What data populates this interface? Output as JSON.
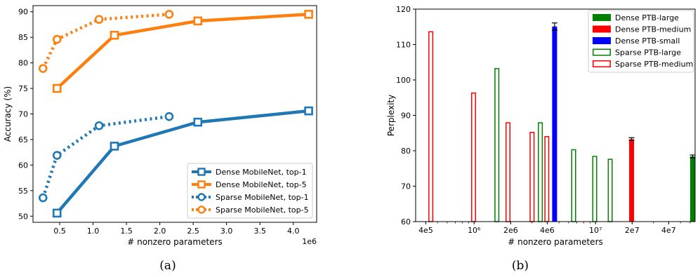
{
  "chart_data": [
    {
      "type": "line",
      "caption": "(a)",
      "xlabel": "# nonzero parameters",
      "ylabel": "Accuracy (%)",
      "x_offset_label": "1e6",
      "xlim": [
        0.1,
        4.35
      ],
      "ylim": [
        48.8,
        91.2
      ],
      "xticks": [
        0.5,
        1.0,
        1.5,
        2.0,
        2.5,
        3.0,
        3.5,
        4.0
      ],
      "xtick_labels": [
        "0.5",
        "1.0",
        "1.5",
        "2.0",
        "2.5",
        "3.0",
        "3.5",
        "4.0"
      ],
      "yticks": [
        50,
        55,
        60,
        65,
        70,
        75,
        80,
        85,
        90
      ],
      "ytick_labels": [
        "50",
        "55",
        "60",
        "65",
        "70",
        "75",
        "80",
        "85",
        "90"
      ],
      "grid": false,
      "legend_position": "lower-right",
      "series": [
        {
          "name": "Dense MobileNet, top-1",
          "style": "solid",
          "marker": "square",
          "color": "#1f77b4",
          "x": [
            0.46,
            1.32,
            2.57,
            4.23
          ],
          "y": [
            50.6,
            63.7,
            68.4,
            70.6
          ]
        },
        {
          "name": "Dense MobileNet, top-5",
          "style": "solid",
          "marker": "square",
          "color": "#ff7f0e",
          "x": [
            0.46,
            1.32,
            2.57,
            4.23
          ],
          "y": [
            75.0,
            85.4,
            88.2,
            89.5
          ]
        },
        {
          "name": "Sparse MobileNet, top-1",
          "style": "dotted",
          "marker": "circle",
          "color": "#1f77b4",
          "x": [
            0.25,
            0.46,
            1.09,
            2.14
          ],
          "y": [
            53.6,
            61.9,
            67.7,
            69.5
          ]
        },
        {
          "name": "Sparse MobileNet, top-5",
          "style": "dotted",
          "marker": "circle",
          "color": "#ff7f0e",
          "x": [
            0.25,
            0.46,
            1.09,
            2.14
          ],
          "y": [
            78.9,
            84.6,
            88.5,
            89.5
          ]
        }
      ]
    },
    {
      "type": "bar",
      "caption": "(b)",
      "xlabel": "# nonzero parameters",
      "ylabel": "Perplexity",
      "xscale": "log",
      "xlim": [
        330000,
        66000000
      ],
      "ylim": [
        60,
        120
      ],
      "xticks": [
        400000,
        1000000,
        2000000,
        4000000,
        10000000,
        20000000,
        40000000
      ],
      "xtick_labels": [
        "4e5",
        "10⁶",
        "2e6",
        "4e6",
        "10⁷",
        "2e7",
        "4e7"
      ],
      "yticks": [
        60,
        70,
        80,
        90,
        100,
        110,
        120
      ],
      "ytick_labels": [
        "60",
        "70",
        "80",
        "90",
        "100",
        "110",
        "120"
      ],
      "grid": false,
      "legend_position": "top-right",
      "series": [
        {
          "name": "Dense PTB-large",
          "fill": "solid",
          "color": "#008000",
          "points": [
            {
              "x": 66000000,
              "y": 78.4,
              "err": 0.4
            }
          ]
        },
        {
          "name": "Dense PTB-medium",
          "fill": "solid",
          "color": "#ff0000",
          "points": [
            {
              "x": 19800000,
              "y": 83.3,
              "err": 0.4
            }
          ]
        },
        {
          "name": "Dense PTB-small",
          "fill": "solid",
          "color": "#0000ff",
          "points": [
            {
              "x": 4600000,
              "y": 115.1,
              "err": 1.0
            }
          ]
        },
        {
          "name": "Sparse PTB-large",
          "fill": "outline",
          "color": "#008000",
          "points": [
            {
              "x": 1540000,
              "y": 103.2
            },
            {
              "x": 3510000,
              "y": 87.9
            },
            {
              "x": 6600000,
              "y": 80.3
            },
            {
              "x": 9840000,
              "y": 78.4
            },
            {
              "x": 13200000,
              "y": 77.6
            }
          ]
        },
        {
          "name": "Sparse PTB-medium",
          "fill": "outline",
          "color": "#ff0000",
          "points": [
            {
              "x": 440000,
              "y": 113.6
            },
            {
              "x": 990000,
              "y": 96.3
            },
            {
              "x": 1900000,
              "y": 87.9
            },
            {
              "x": 3000000,
              "y": 85.2
            },
            {
              "x": 3970000,
              "y": 84.0
            }
          ]
        }
      ]
    }
  ]
}
